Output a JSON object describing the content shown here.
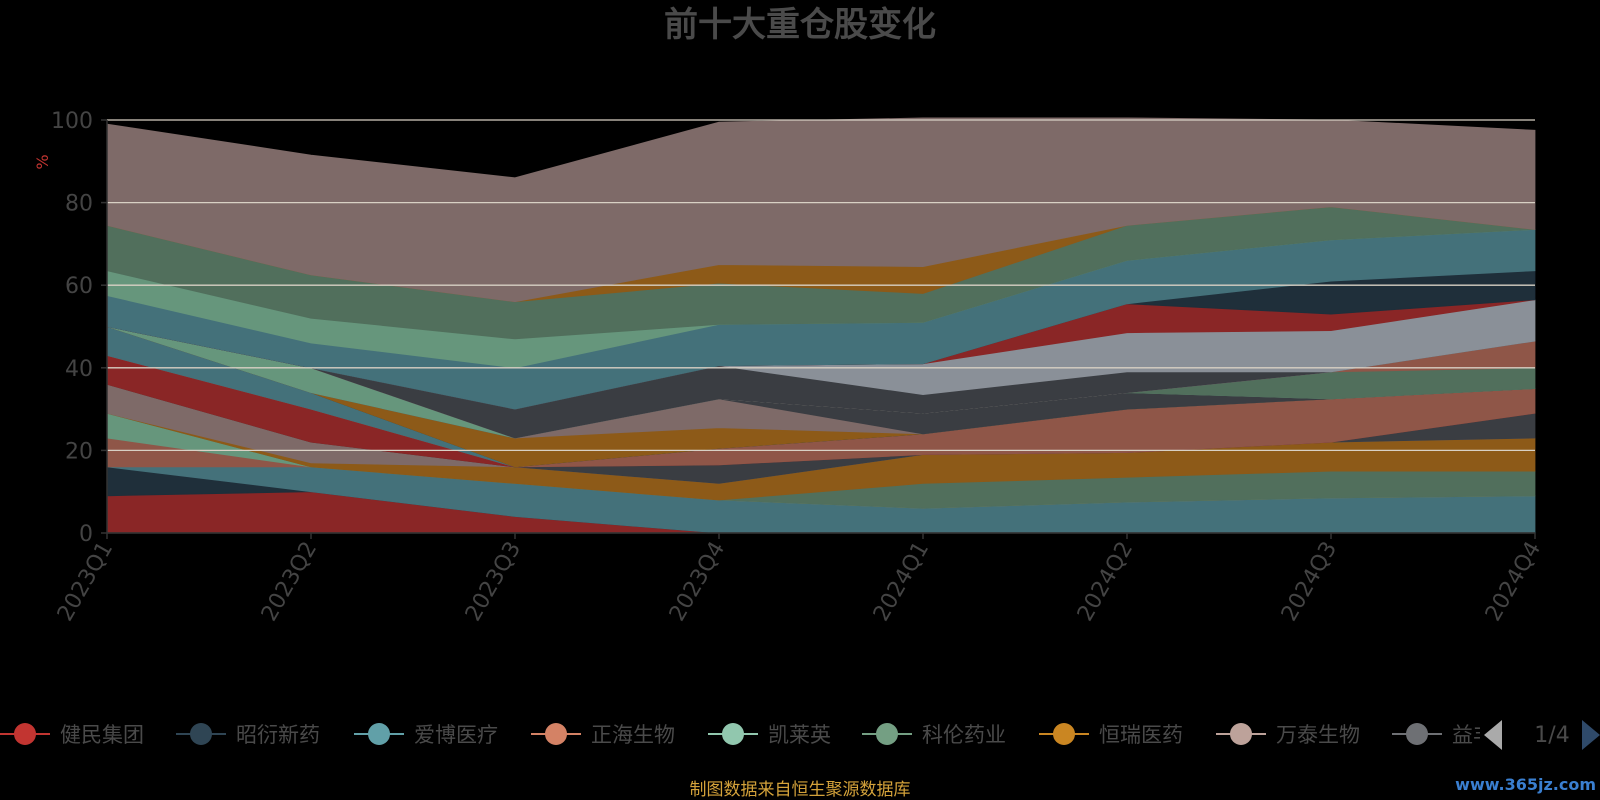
{
  "chart_data": {
    "type": "area",
    "stacked": true,
    "title": "前十大重仓股变化",
    "ylabel": "%",
    "ylim": [
      0,
      100
    ],
    "yticks": [
      0,
      20,
      40,
      60,
      80,
      100
    ],
    "categories": [
      "2023Q1",
      "2023Q2",
      "2023Q3",
      "2023Q4",
      "2024Q1",
      "2024Q2",
      "2024Q3",
      "2024Q4"
    ],
    "series": [
      {
        "name": "健民集团",
        "color": "#8a2626",
        "values": [
          9,
          10,
          4,
          0,
          0,
          0,
          0,
          0
        ]
      },
      {
        "name": "昭衍新药",
        "color": "#1f2f3a",
        "values": [
          7,
          0,
          0,
          0,
          0,
          0,
          0,
          0
        ]
      },
      {
        "name": "爱博医疗",
        "color": "#44717a",
        "values": [
          0,
          6,
          8,
          8,
          6,
          7.5,
          8.5,
          9
        ]
      },
      {
        "name": "正海生物",
        "color": "#8f5648",
        "values": [
          7,
          0,
          0,
          0,
          0,
          0,
          0,
          0
        ]
      },
      {
        "name": "凯莱英",
        "color": "#66967c",
        "values": [
          6,
          0,
          0,
          0,
          0,
          0,
          0,
          0
        ]
      },
      {
        "name": "科伦药业",
        "color": "#516f5c",
        "values": [
          0,
          0,
          0,
          0,
          6,
          6,
          6.5,
          6
        ]
      },
      {
        "name": "恒瑞医药",
        "color": "#8d5a18",
        "values": [
          0,
          1,
          4,
          4,
          7,
          6,
          7,
          8
        ]
      },
      {
        "name": "万泰生物",
        "color": "#7e6a68",
        "values": [
          7,
          5,
          0,
          0,
          0,
          0,
          0,
          0
        ]
      },
      {
        "name": "益丰药房",
        "color": "#3a3d42",
        "values": [
          0,
          0,
          0,
          4.5,
          0,
          0,
          0,
          6
        ]
      },
      {
        "name": "",
        "color": "#8a2626",
        "values": [
          7,
          8,
          0,
          0,
          0,
          0,
          0,
          0
        ]
      },
      {
        "name": "",
        "color": "#8f5648",
        "values": [
          0,
          0,
          0,
          4,
          5,
          10.5,
          10.5,
          6
        ]
      },
      {
        "name": "",
        "color": "#44717a",
        "values": [
          7,
          4,
          0,
          0,
          0,
          0,
          0,
          0
        ]
      },
      {
        "name": "",
        "color": "#1f2f3a",
        "values": [
          0,
          0,
          0,
          0,
          0,
          0,
          0,
          0
        ]
      },
      {
        "name": "",
        "color": "#8d5a18",
        "values": [
          0,
          0,
          7,
          5,
          0,
          0,
          0,
          0
        ]
      },
      {
        "name": "",
        "color": "#7e6a68",
        "values": [
          0,
          0,
          0,
          7,
          0,
          0,
          0,
          0
        ]
      },
      {
        "name": "",
        "color": "#3a3d42",
        "values": [
          0,
          0,
          0,
          0,
          5,
          4,
          0,
          0
        ]
      },
      {
        "name": "",
        "color": "#66967c",
        "values": [
          0,
          6,
          0,
          0,
          0,
          0,
          0,
          0
        ]
      },
      {
        "name": "",
        "color": "#516f5c",
        "values": [
          0,
          0,
          0,
          0,
          0,
          0,
          6.5,
          5
        ]
      },
      {
        "name": "",
        "color": "#8f5648",
        "values": [
          0,
          0,
          0,
          0,
          0,
          0,
          0,
          6.5
        ]
      },
      {
        "name": "",
        "color": "#8a9098",
        "values": [
          0,
          0,
          0,
          0,
          0,
          0,
          0,
          0
        ]
      },
      {
        "name": "",
        "color": "#3a3d42",
        "values": [
          0,
          0,
          7,
          8,
          4.5,
          5,
          0,
          0
        ]
      },
      {
        "name": "",
        "color": "#8a9098",
        "values": [
          0,
          0,
          0,
          0,
          7.5,
          9.5,
          10,
          10
        ]
      },
      {
        "name": "",
        "color": "#8a2626",
        "values": [
          0,
          0,
          0,
          0,
          0,
          7,
          4,
          0
        ]
      },
      {
        "name": "",
        "color": "#1f2f3a",
        "values": [
          0,
          0,
          0,
          0,
          0,
          0,
          8,
          7
        ]
      },
      {
        "name": "",
        "color": "#44717a",
        "values": [
          7.5,
          6,
          10,
          10,
          10,
          10.5,
          10,
          10
        ]
      },
      {
        "name": "",
        "color": "#66967c",
        "values": [
          6,
          6,
          7,
          0,
          0,
          0,
          0,
          0
        ]
      },
      {
        "name": "",
        "color": "#516f5c",
        "values": [
          11,
          10.5,
          9,
          10,
          7,
          8.5,
          8,
          0
        ]
      },
      {
        "name": "",
        "color": "#8d5a18",
        "values": [
          0,
          0,
          0,
          4.5,
          6.5,
          0,
          0,
          0
        ]
      },
      {
        "name": "",
        "color": "#7e6a68",
        "values": [
          24.5,
          29,
          30,
          34.5,
          36,
          26,
          21,
          24
        ]
      }
    ]
  },
  "legend": {
    "items": [
      {
        "name": "健民集团",
        "color": "#c23531"
      },
      {
        "name": "昭衍新药",
        "color": "#2f4554"
      },
      {
        "name": "爱博医疗",
        "color": "#61a0a8"
      },
      {
        "name": "正海生物",
        "color": "#d48265"
      },
      {
        "name": "凯莱英",
        "color": "#91c7ae"
      },
      {
        "name": "科伦药业",
        "color": "#749f83"
      },
      {
        "name": "恒瑞医药",
        "color": "#ca8622"
      },
      {
        "name": "万泰生物",
        "color": "#bda29a"
      },
      {
        "name": "益丰药房",
        "color": "#6e7074"
      }
    ],
    "page": "1/4",
    "prev_icon": "triangle-left-icon",
    "next_icon": "triangle-right-icon"
  },
  "source": "制图数据来自恒生聚源数据库",
  "watermark": "www.365jz.com"
}
